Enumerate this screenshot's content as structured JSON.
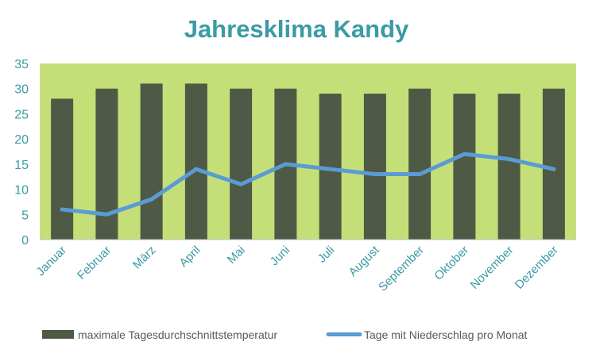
{
  "chart_data": {
    "type": "bar",
    "title": "Jahresklima Kandy",
    "categories": [
      "Januar",
      "Februar",
      "März",
      "April",
      "Mai",
      "Juni",
      "Juli",
      "August",
      "September",
      "Oktober",
      "November",
      "Dezember"
    ],
    "series": [
      {
        "name": "maximale Tagesdurchschnittstemperatur",
        "type": "bar",
        "values": [
          28,
          30,
          31,
          31,
          30,
          30,
          29,
          29,
          30,
          29,
          29,
          30
        ]
      },
      {
        "name": "Tage mit Niederschlag pro Monat",
        "type": "line",
        "values": [
          6,
          5,
          8,
          14,
          11,
          15,
          14,
          13,
          13,
          17,
          16,
          14
        ]
      }
    ],
    "ylim": [
      0,
      35
    ],
    "yticks": [
      "0",
      "5",
      "10",
      "15",
      "20",
      "25",
      "30",
      "35"
    ],
    "grid": false,
    "legend_position": "bottom",
    "colors": {
      "title": "#3a9ba4",
      "axis_text": "#3a9ba4",
      "plot_background": "#c5df78",
      "bar": "#4e5a45",
      "line": "#5b9bd5"
    }
  }
}
